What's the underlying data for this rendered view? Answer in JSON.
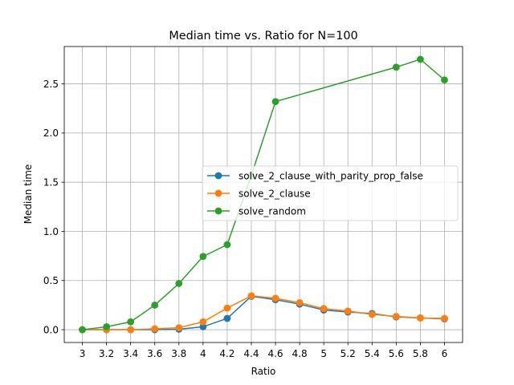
{
  "chart_data": {
    "type": "line",
    "title": "Median time vs. Ratio for N=100",
    "xlabel": "Ratio",
    "ylabel": "Median time",
    "x_ticks": [
      "3",
      "3.2",
      "3.4",
      "3.6",
      "3.8",
      "4",
      "4.2",
      "4.4",
      "4.6",
      "4.8",
      "5",
      "5.2",
      "5.4",
      "5.6",
      "5.8",
      "6"
    ],
    "y_ticks": [
      "0.0",
      "0.5",
      "1.0",
      "1.5",
      "2.0",
      "2.5"
    ],
    "xlim": [
      2.85,
      6.15
    ],
    "ylim": [
      -0.13,
      2.88
    ],
    "grid": true,
    "legend_position": "center-right",
    "x": [
      3,
      3.2,
      3.4,
      3.6,
      3.8,
      4,
      4.2,
      4.4,
      4.6,
      4.8,
      5,
      5.2,
      5.4,
      5.6,
      5.8,
      6
    ],
    "series": [
      {
        "name": "solve_2_clause_with_parity_prop_false",
        "color": "#1f77b4",
        "values": [
          0.0,
          0.0,
          0.0,
          0.0,
          0.005,
          0.03,
          0.115,
          0.34,
          0.305,
          0.26,
          0.2,
          0.18,
          0.165,
          0.13,
          0.12,
          0.11
        ]
      },
      {
        "name": "solve_2_clause",
        "color": "#ff7f0e",
        "values": [
          0.0,
          0.0,
          0.0,
          0.01,
          0.02,
          0.08,
          0.22,
          0.345,
          0.32,
          0.275,
          0.215,
          0.19,
          0.155,
          0.135,
          0.12,
          0.115
        ]
      },
      {
        "name": "solve_random",
        "color": "#2ca02c",
        "values": [
          0.0,
          0.03,
          0.08,
          0.25,
          0.47,
          0.745,
          0.865,
          1.57,
          2.32,
          null,
          null,
          null,
          null,
          2.67,
          2.75,
          2.54
        ]
      }
    ]
  }
}
